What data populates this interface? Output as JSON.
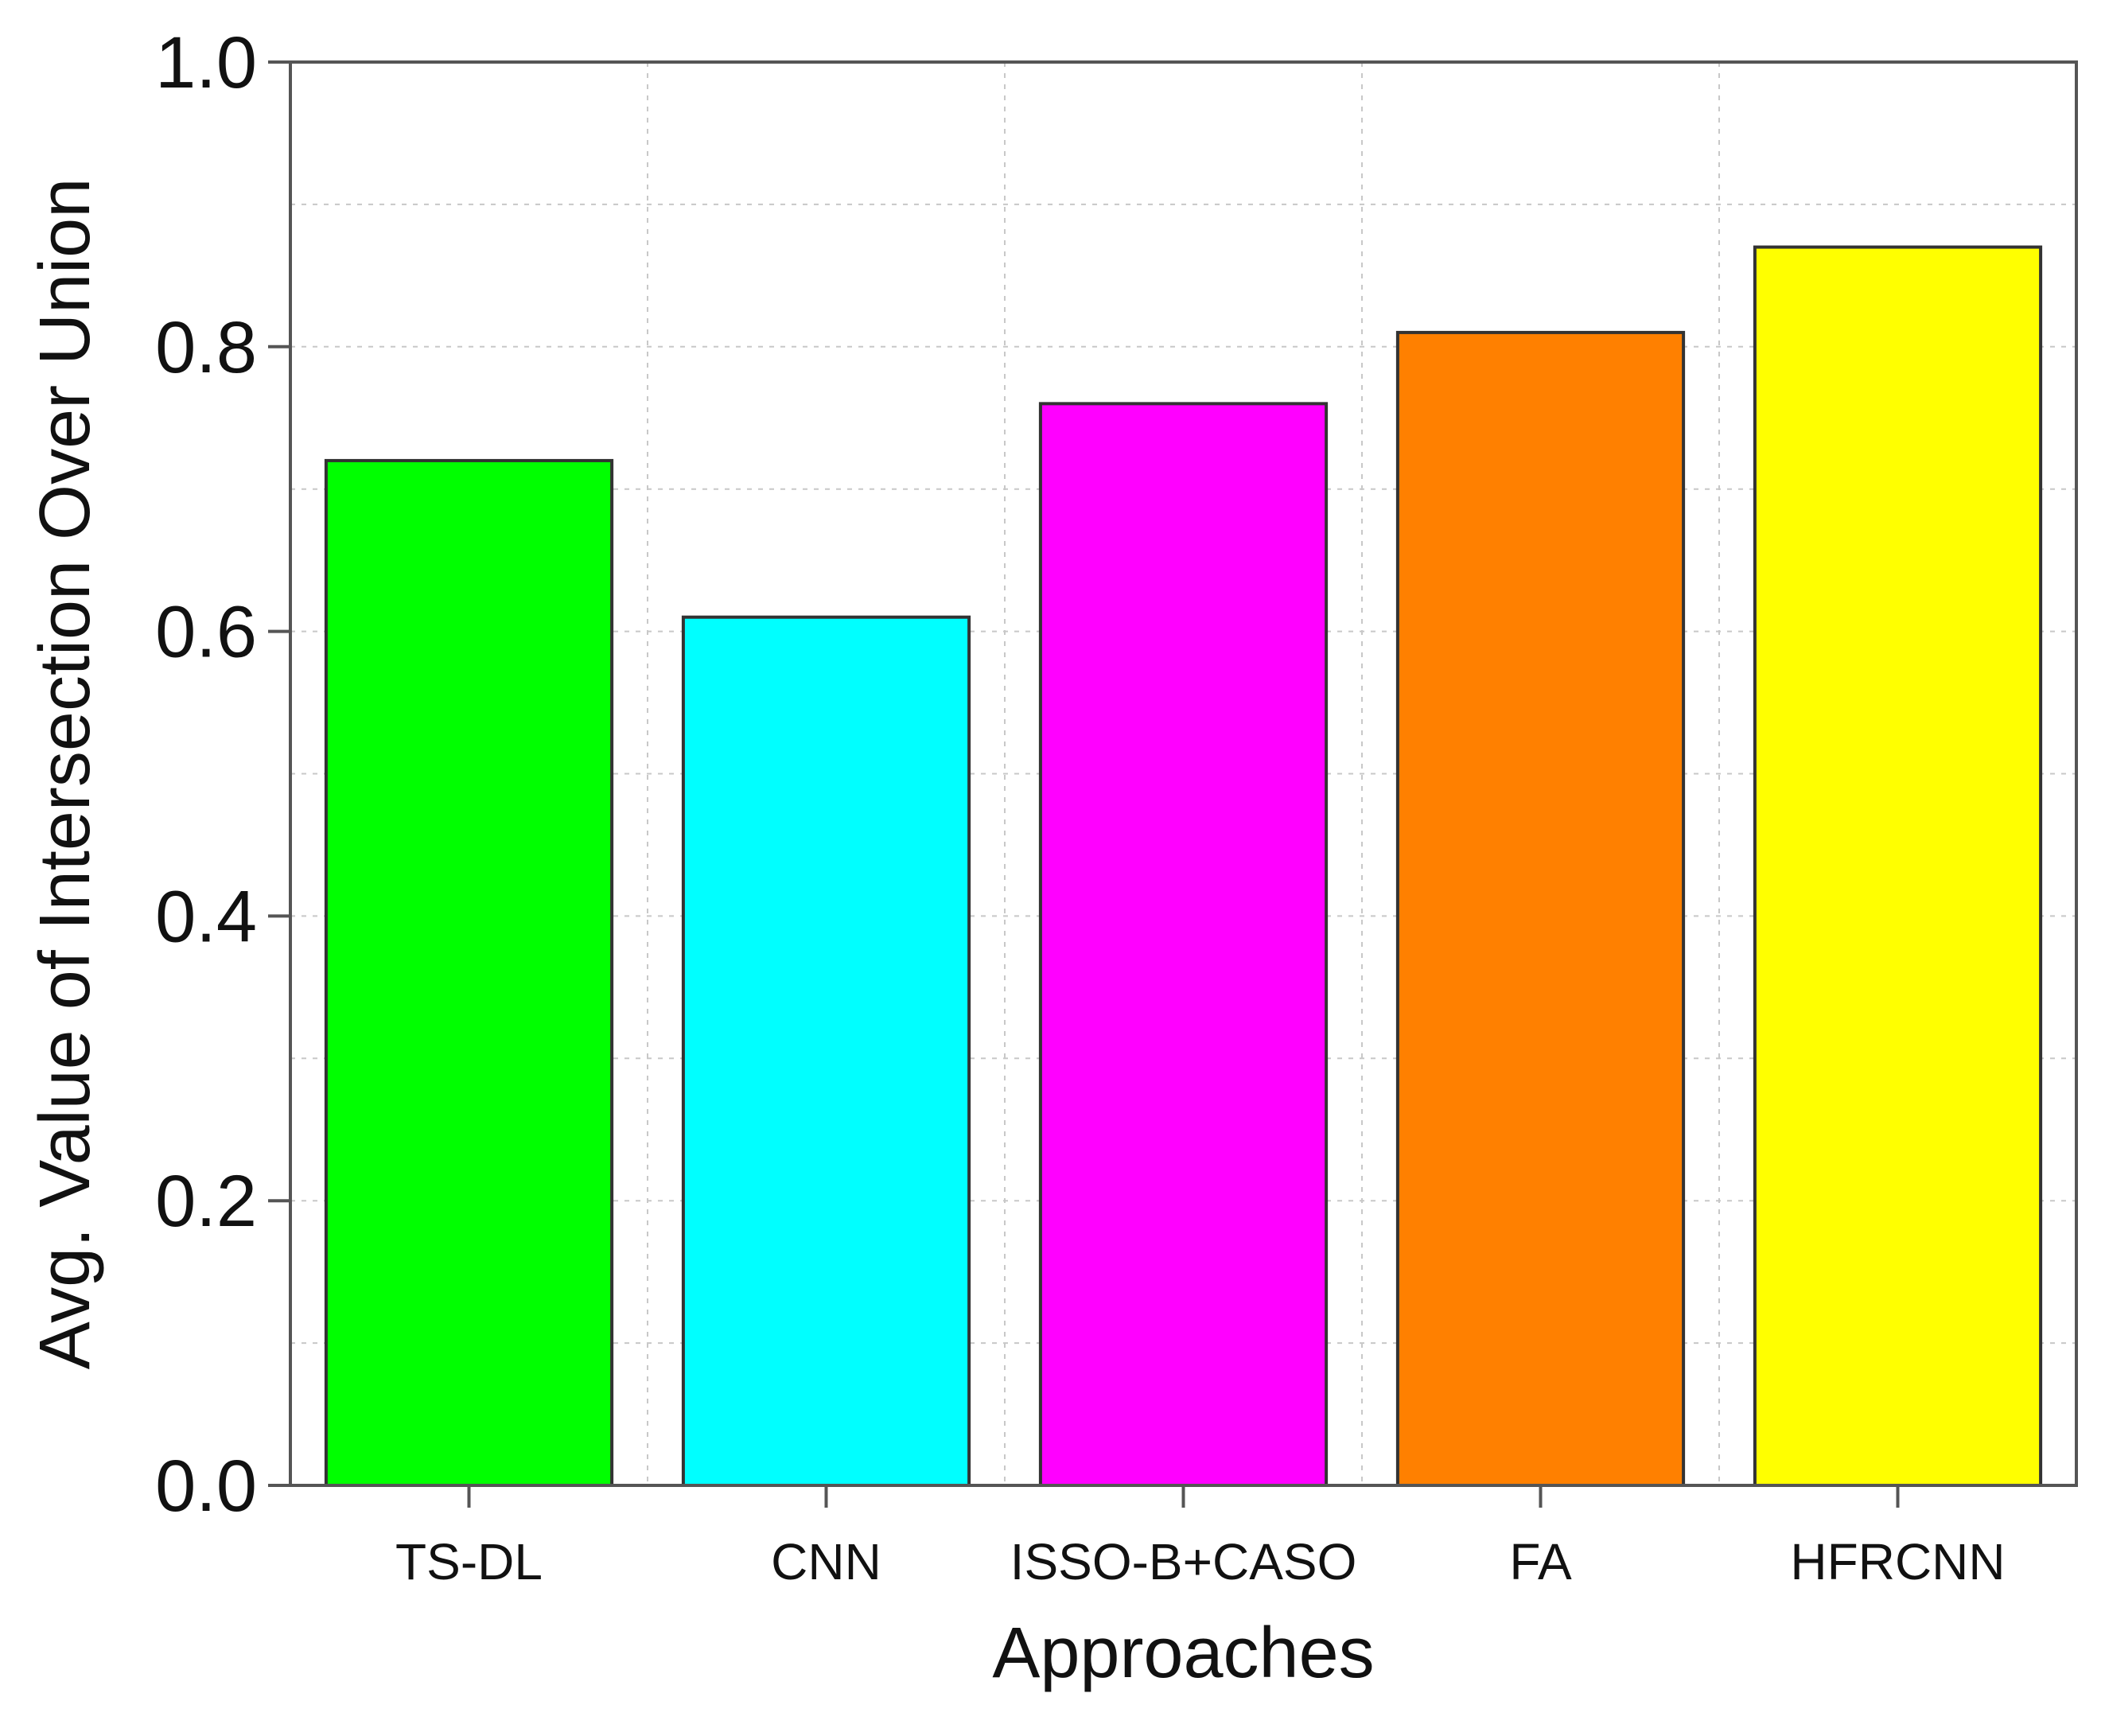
{
  "chart_data": {
    "type": "bar",
    "title": "",
    "xlabel": "Approaches",
    "ylabel": "Avg. Value of Intersection Over Union",
    "categories": [
      "TS-DL",
      "CNN",
      "ISSO-B+CASO",
      "FA",
      "HFRCNN"
    ],
    "values": [
      0.72,
      0.61,
      0.76,
      0.81,
      0.87
    ],
    "colors": [
      "#00ff00",
      "#00ffff",
      "#ff00ff",
      "#ff8000",
      "#ffff00"
    ],
    "ylim": [
      0.0,
      1.0
    ],
    "yticks": [
      "0.0",
      "0.2",
      "0.4",
      "0.6",
      "0.8",
      "1.0"
    ],
    "ytick_values": [
      0.0,
      0.2,
      0.4,
      0.6,
      0.8,
      1.0
    ],
    "minor_grid_y": [
      0.1,
      0.3,
      0.5,
      0.7,
      0.9
    ],
    "grid": true,
    "legend": "none"
  }
}
